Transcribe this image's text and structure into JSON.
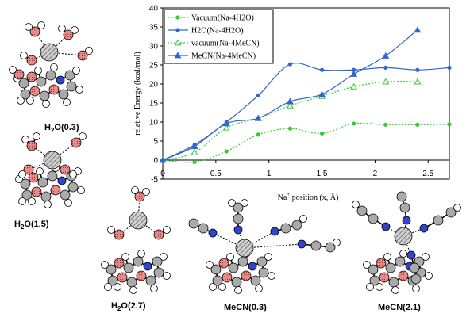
{
  "chart_data": {
    "type": "line",
    "xlabel": "Na",
    "xlabel_sup": "+",
    "xlabel_rest": " position (x, Å)",
    "ylabel": "relative Energy (kcal/mol)",
    "xlim": [
      0,
      2.7
    ],
    "ylim": [
      -5,
      40
    ],
    "x_ticks": [
      "0",
      "0.5",
      "1",
      "1.5",
      "2",
      "2.5"
    ],
    "y_ticks": [
      "-5",
      "0",
      "5",
      "10",
      "15",
      "20",
      "25",
      "30",
      "35",
      "40"
    ],
    "grid": false,
    "legend_position": "top-left",
    "series": [
      {
        "name": "Vacuum(Na-4H2O)",
        "color": "#33cc33",
        "marker": "circle",
        "style": "dotted",
        "x": [
          0,
          0.3,
          0.6,
          0.9,
          1.2,
          1.5,
          1.8,
          2.1,
          2.4,
          2.7
        ],
        "y": [
          0,
          -0.5,
          2.3,
          6.7,
          8.3,
          7.0,
          9.6,
          9.3,
          9.3,
          9.4
        ]
      },
      {
        "name": "H2O(Na-4H2O)",
        "color": "#3366cc",
        "marker": "circle",
        "style": "solid",
        "x": [
          0,
          0.3,
          0.6,
          0.9,
          1.2,
          1.5,
          1.8,
          2.1,
          2.4,
          2.7
        ],
        "y": [
          0,
          4.0,
          10.0,
          17.0,
          25.2,
          23.7,
          23.7,
          24.3,
          23.7,
          24.3
        ]
      },
      {
        "name": "vacuum(Na-4MeCN)",
        "color": "#33cc33",
        "marker": "triangle-open",
        "style": "dotted",
        "x": [
          0,
          0.3,
          0.6,
          0.9,
          1.2,
          1.5,
          1.8,
          2.1,
          2.4
        ],
        "y": [
          0,
          2.0,
          8.5,
          11.0,
          14.3,
          16.8,
          19.3,
          20.6,
          20.6
        ]
      },
      {
        "name": "MeCN(Na-4MeCN)",
        "color": "#3366cc",
        "marker": "triangle",
        "style": "solid",
        "x": [
          0,
          0.3,
          0.6,
          0.9,
          1.2,
          1.5,
          1.8,
          2.1,
          2.4
        ],
        "y": [
          0,
          3.6,
          9.6,
          11.0,
          15.4,
          17.3,
          22.6,
          27.4,
          34.2
        ]
      }
    ]
  },
  "structures": [
    {
      "name": "H2O(0.3)",
      "base": "H",
      "sub": "2",
      "rest": "O(0.3)"
    },
    {
      "name": "H2O(1.5)",
      "base": "H",
      "sub": "2",
      "rest": "O(1.5)"
    },
    {
      "name": "H2O(2.7)",
      "base": "H",
      "sub": "2",
      "rest": "O(2.7)"
    },
    {
      "name": "MeCN(0.3)",
      "base": "MeCN(0.3)",
      "sub": "",
      "rest": ""
    },
    {
      "name": "MeCN(2.1)",
      "base": "MeCN(2.1)",
      "sub": "",
      "rest": ""
    }
  ],
  "atom_colors": {
    "oxygen": "#e88a8a",
    "nitrogen": "#3344cc",
    "sodium": "#777777",
    "carbon": "#aaaaaa",
    "hydrogen": "#ffffff"
  }
}
